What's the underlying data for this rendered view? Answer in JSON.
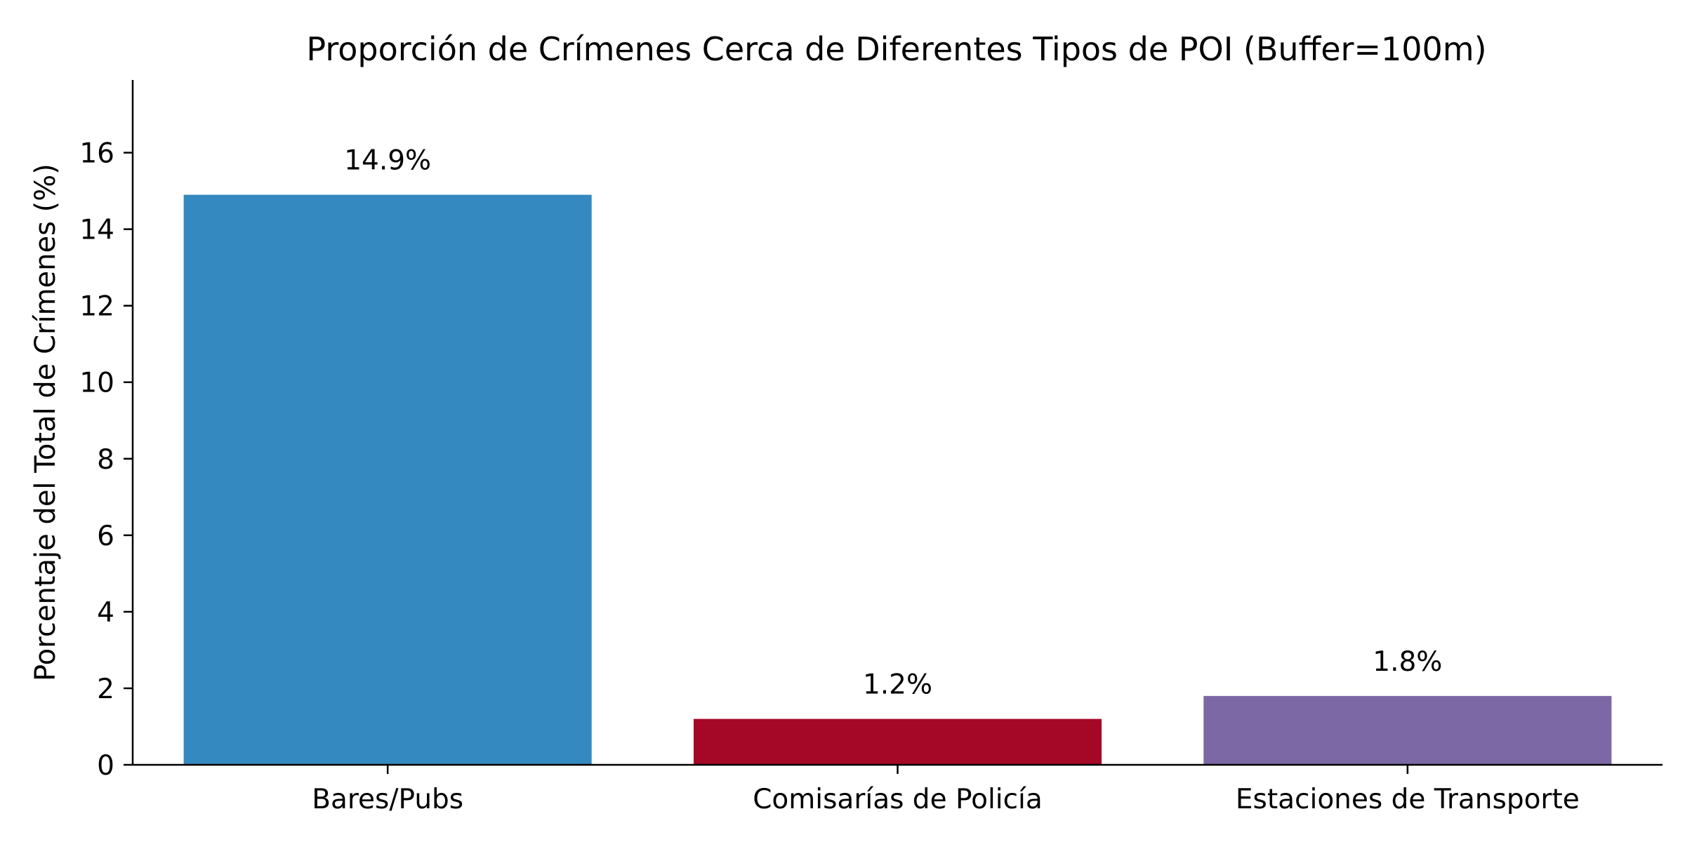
{
  "chart_data": {
    "type": "bar",
    "title": "Proporción de Crímenes Cerca de Diferentes Tipos de POI (Buffer=100m)",
    "xlabel": "",
    "ylabel": "Porcentaje del Total de Crímenes (%)",
    "categories": [
      "Bares/Pubs",
      "Comisarías de Policía",
      "Estaciones de Transporte"
    ],
    "values": [
      14.9,
      1.2,
      1.8
    ],
    "value_labels": [
      "14.9%",
      "1.2%",
      "1.8%"
    ],
    "colors": [
      "#3489c0",
      "#a50726",
      "#7b68a5"
    ],
    "ylim": [
      0,
      17.9
    ],
    "yticks": [
      0,
      2,
      4,
      6,
      8,
      10,
      12,
      14,
      16
    ],
    "ytick_labels": [
      "0",
      "2",
      "4",
      "6",
      "8",
      "10",
      "12",
      "14",
      "16"
    ],
    "grid": false,
    "spines": [
      "left",
      "bottom"
    ]
  }
}
